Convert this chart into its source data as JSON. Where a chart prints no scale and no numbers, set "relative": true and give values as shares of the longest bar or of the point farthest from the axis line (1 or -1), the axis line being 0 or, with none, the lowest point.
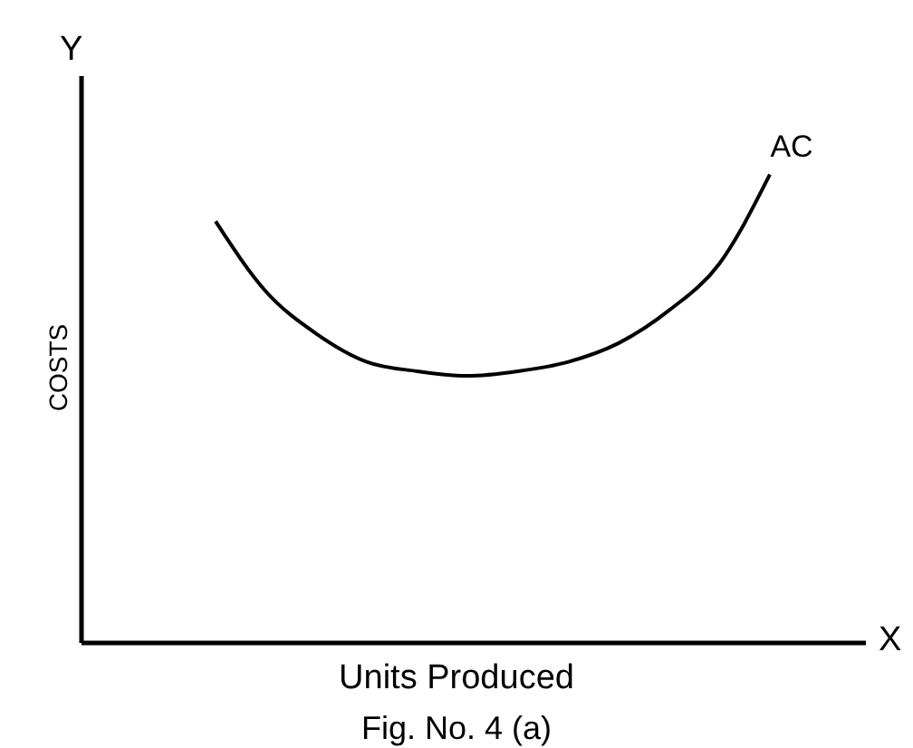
{
  "chart_data": {
    "type": "line",
    "relative": true,
    "xlabel": "Units Produced",
    "ylabel": "COSTS",
    "marker": "none",
    "categories": [
      null,
      null,
      null,
      null,
      null,
      null,
      null,
      null,
      null,
      null,
      null,
      null
    ],
    "series": [
      {
        "name": "AC",
        "color": "#000000",
        "values": [
          0.9,
          0.75,
          0.66,
          0.6,
          0.58,
          0.57,
          0.58,
          0.6,
          0.64,
          0.71,
          0.81,
          1
        ]
      }
    ],
    "annotations": [
      "Y",
      "X",
      "Fig. No. 4 (a)"
    ]
  }
}
